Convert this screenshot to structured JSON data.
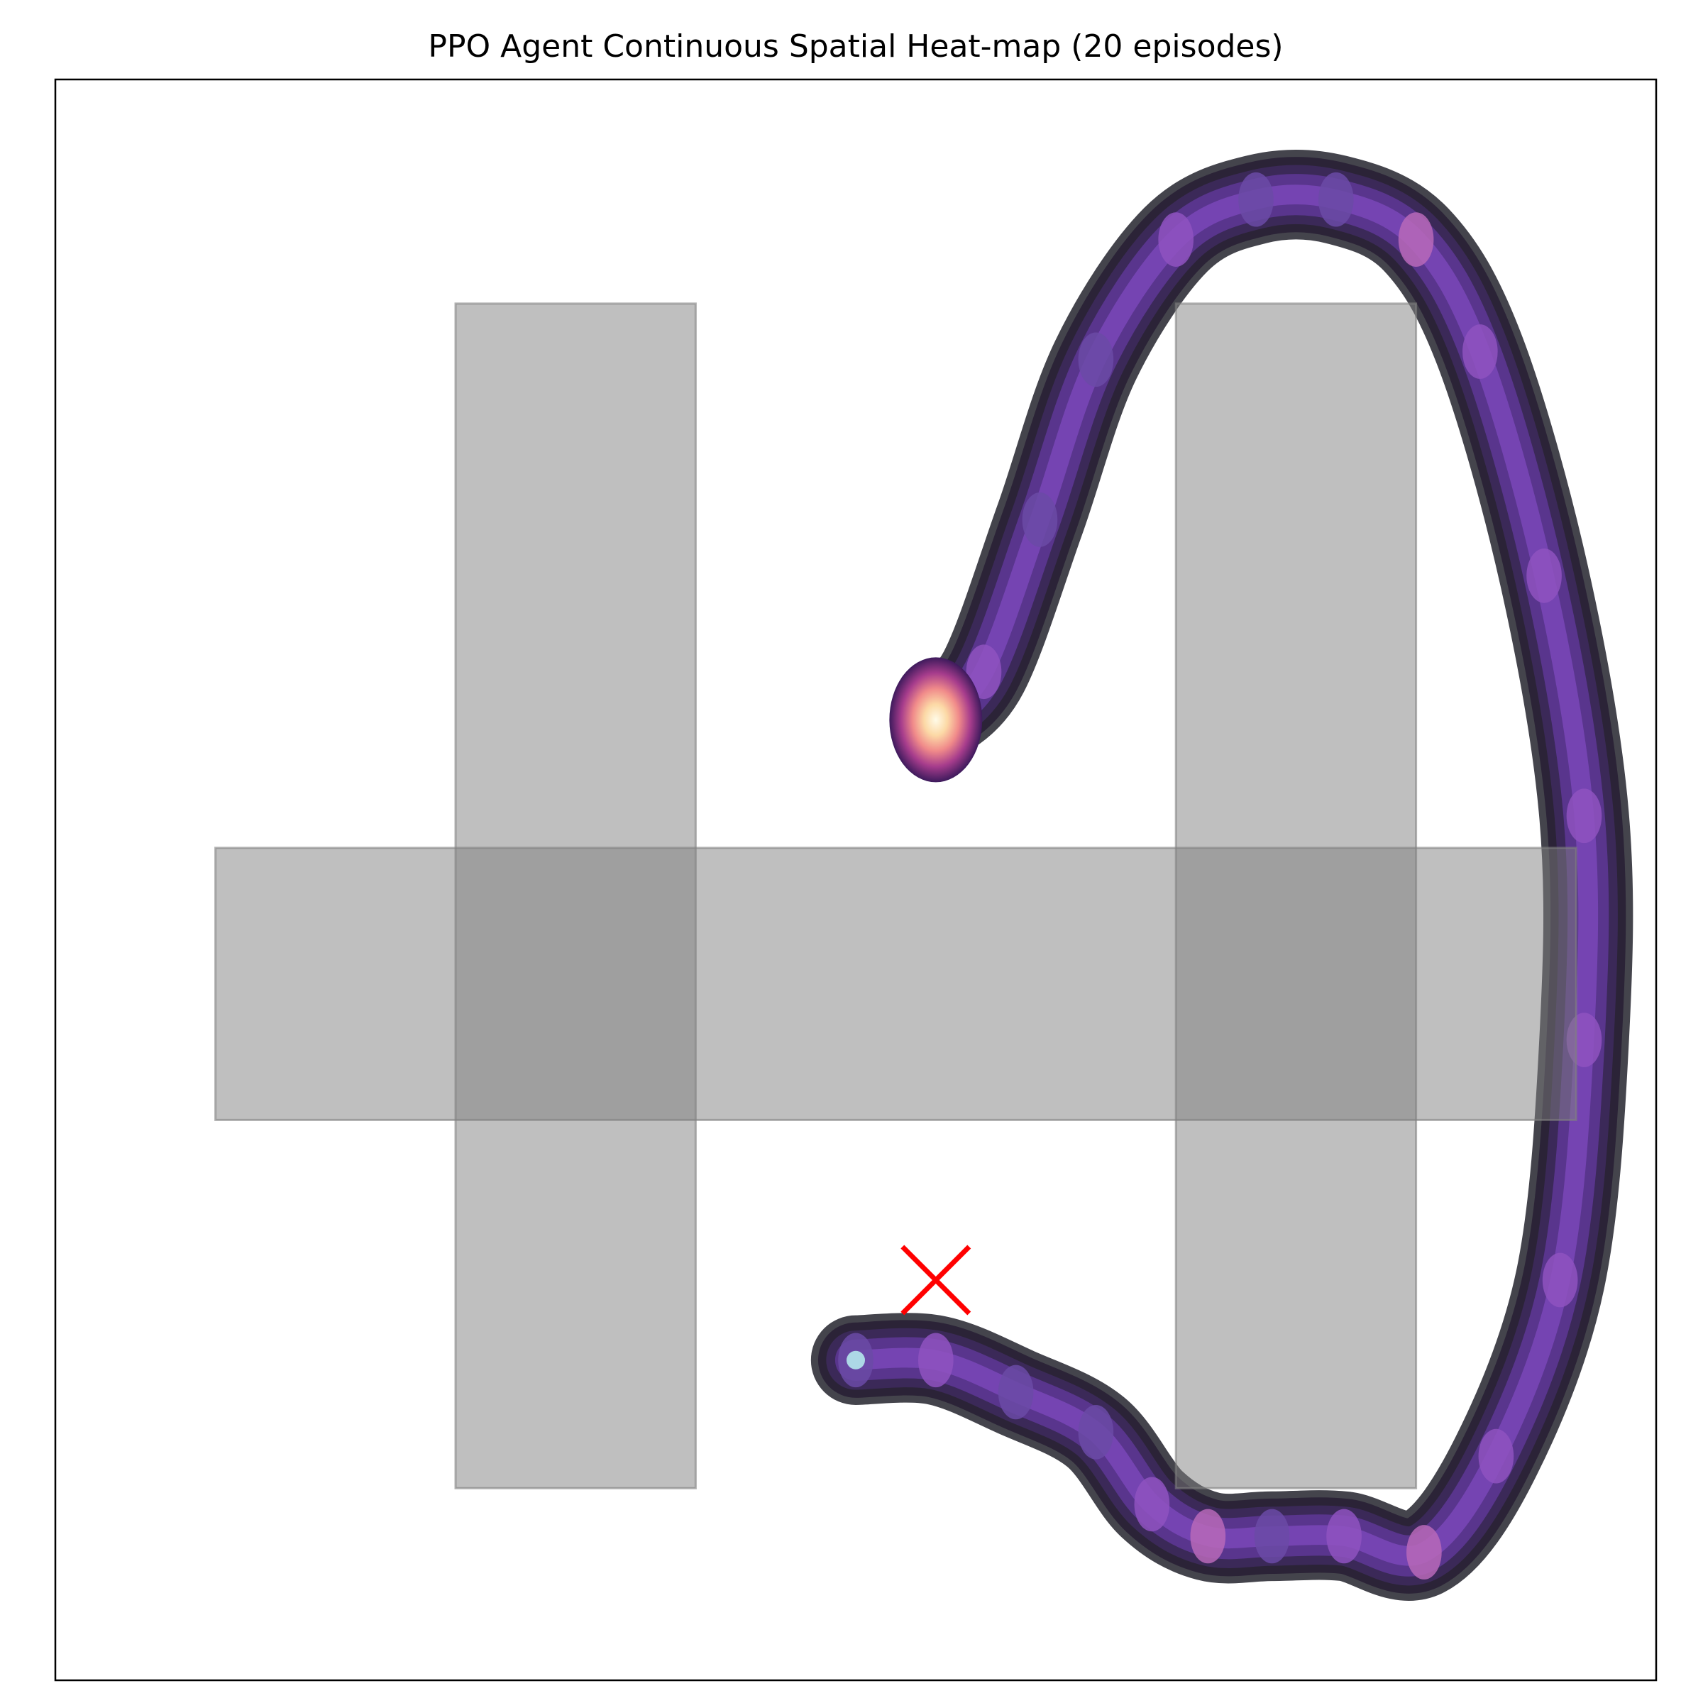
{
  "chart_data": {
    "type": "heatmap",
    "title": "PPO Agent Continuous Spatial Heat-map (20 episodes)",
    "xlabel": "",
    "ylabel": "",
    "xlim": [
      0,
      20
    ],
    "ylim": [
      0,
      20
    ],
    "axis_ticks_visible": false,
    "grid": false,
    "colormap": "magma",
    "density_peak_relative": 1.0,
    "obstacles": [
      {
        "x": [
          5.0,
          8.0
        ],
        "y": [
          2.4,
          17.2
        ],
        "color": "#808080",
        "opacity": 0.5
      },
      {
        "x": [
          2.0,
          19.0
        ],
        "y": [
          7.0,
          10.4
        ],
        "color": "#808080",
        "opacity": 0.5
      },
      {
        "x": [
          14.0,
          17.0
        ],
        "y": [
          2.4,
          17.2
        ],
        "color": "#808080",
        "opacity": 0.5
      }
    ],
    "trajectory": [
      {
        "x": 10.0,
        "y": 4.0,
        "density": 0.3
      },
      {
        "x": 11.0,
        "y": 4.0,
        "density": 0.42
      },
      {
        "x": 12.0,
        "y": 3.6,
        "density": 0.3
      },
      {
        "x": 13.0,
        "y": 3.1,
        "density": 0.3
      },
      {
        "x": 13.7,
        "y": 2.2,
        "density": 0.38
      },
      {
        "x": 14.4,
        "y": 1.8,
        "density": 0.48
      },
      {
        "x": 15.2,
        "y": 1.8,
        "density": 0.3
      },
      {
        "x": 16.1,
        "y": 1.8,
        "density": 0.38
      },
      {
        "x": 17.1,
        "y": 1.6,
        "density": 0.52
      },
      {
        "x": 18.0,
        "y": 2.8,
        "density": 0.42
      },
      {
        "x": 18.8,
        "y": 5.0,
        "density": 0.36
      },
      {
        "x": 19.1,
        "y": 8.0,
        "density": 0.4
      },
      {
        "x": 19.1,
        "y": 10.8,
        "density": 0.38
      },
      {
        "x": 18.6,
        "y": 13.8,
        "density": 0.36
      },
      {
        "x": 17.8,
        "y": 16.6,
        "density": 0.42
      },
      {
        "x": 17.0,
        "y": 18.0,
        "density": 0.5
      },
      {
        "x": 16.0,
        "y": 18.5,
        "density": 0.3
      },
      {
        "x": 15.0,
        "y": 18.5,
        "density": 0.32
      },
      {
        "x": 14.0,
        "y": 18.0,
        "density": 0.42
      },
      {
        "x": 13.0,
        "y": 16.5,
        "density": 0.3
      },
      {
        "x": 12.3,
        "y": 14.5,
        "density": 0.3
      },
      {
        "x": 11.6,
        "y": 12.6,
        "density": 0.38
      },
      {
        "x": 11.0,
        "y": 12.0,
        "density": 1.0
      }
    ],
    "start_marker": {
      "x": 10.0,
      "y": 4.0,
      "color": "#add8e6",
      "shape": "circle"
    },
    "goal_marker": {
      "x": 11.0,
      "y": 5.0,
      "color": "#ff0000",
      "shape": "x"
    }
  }
}
